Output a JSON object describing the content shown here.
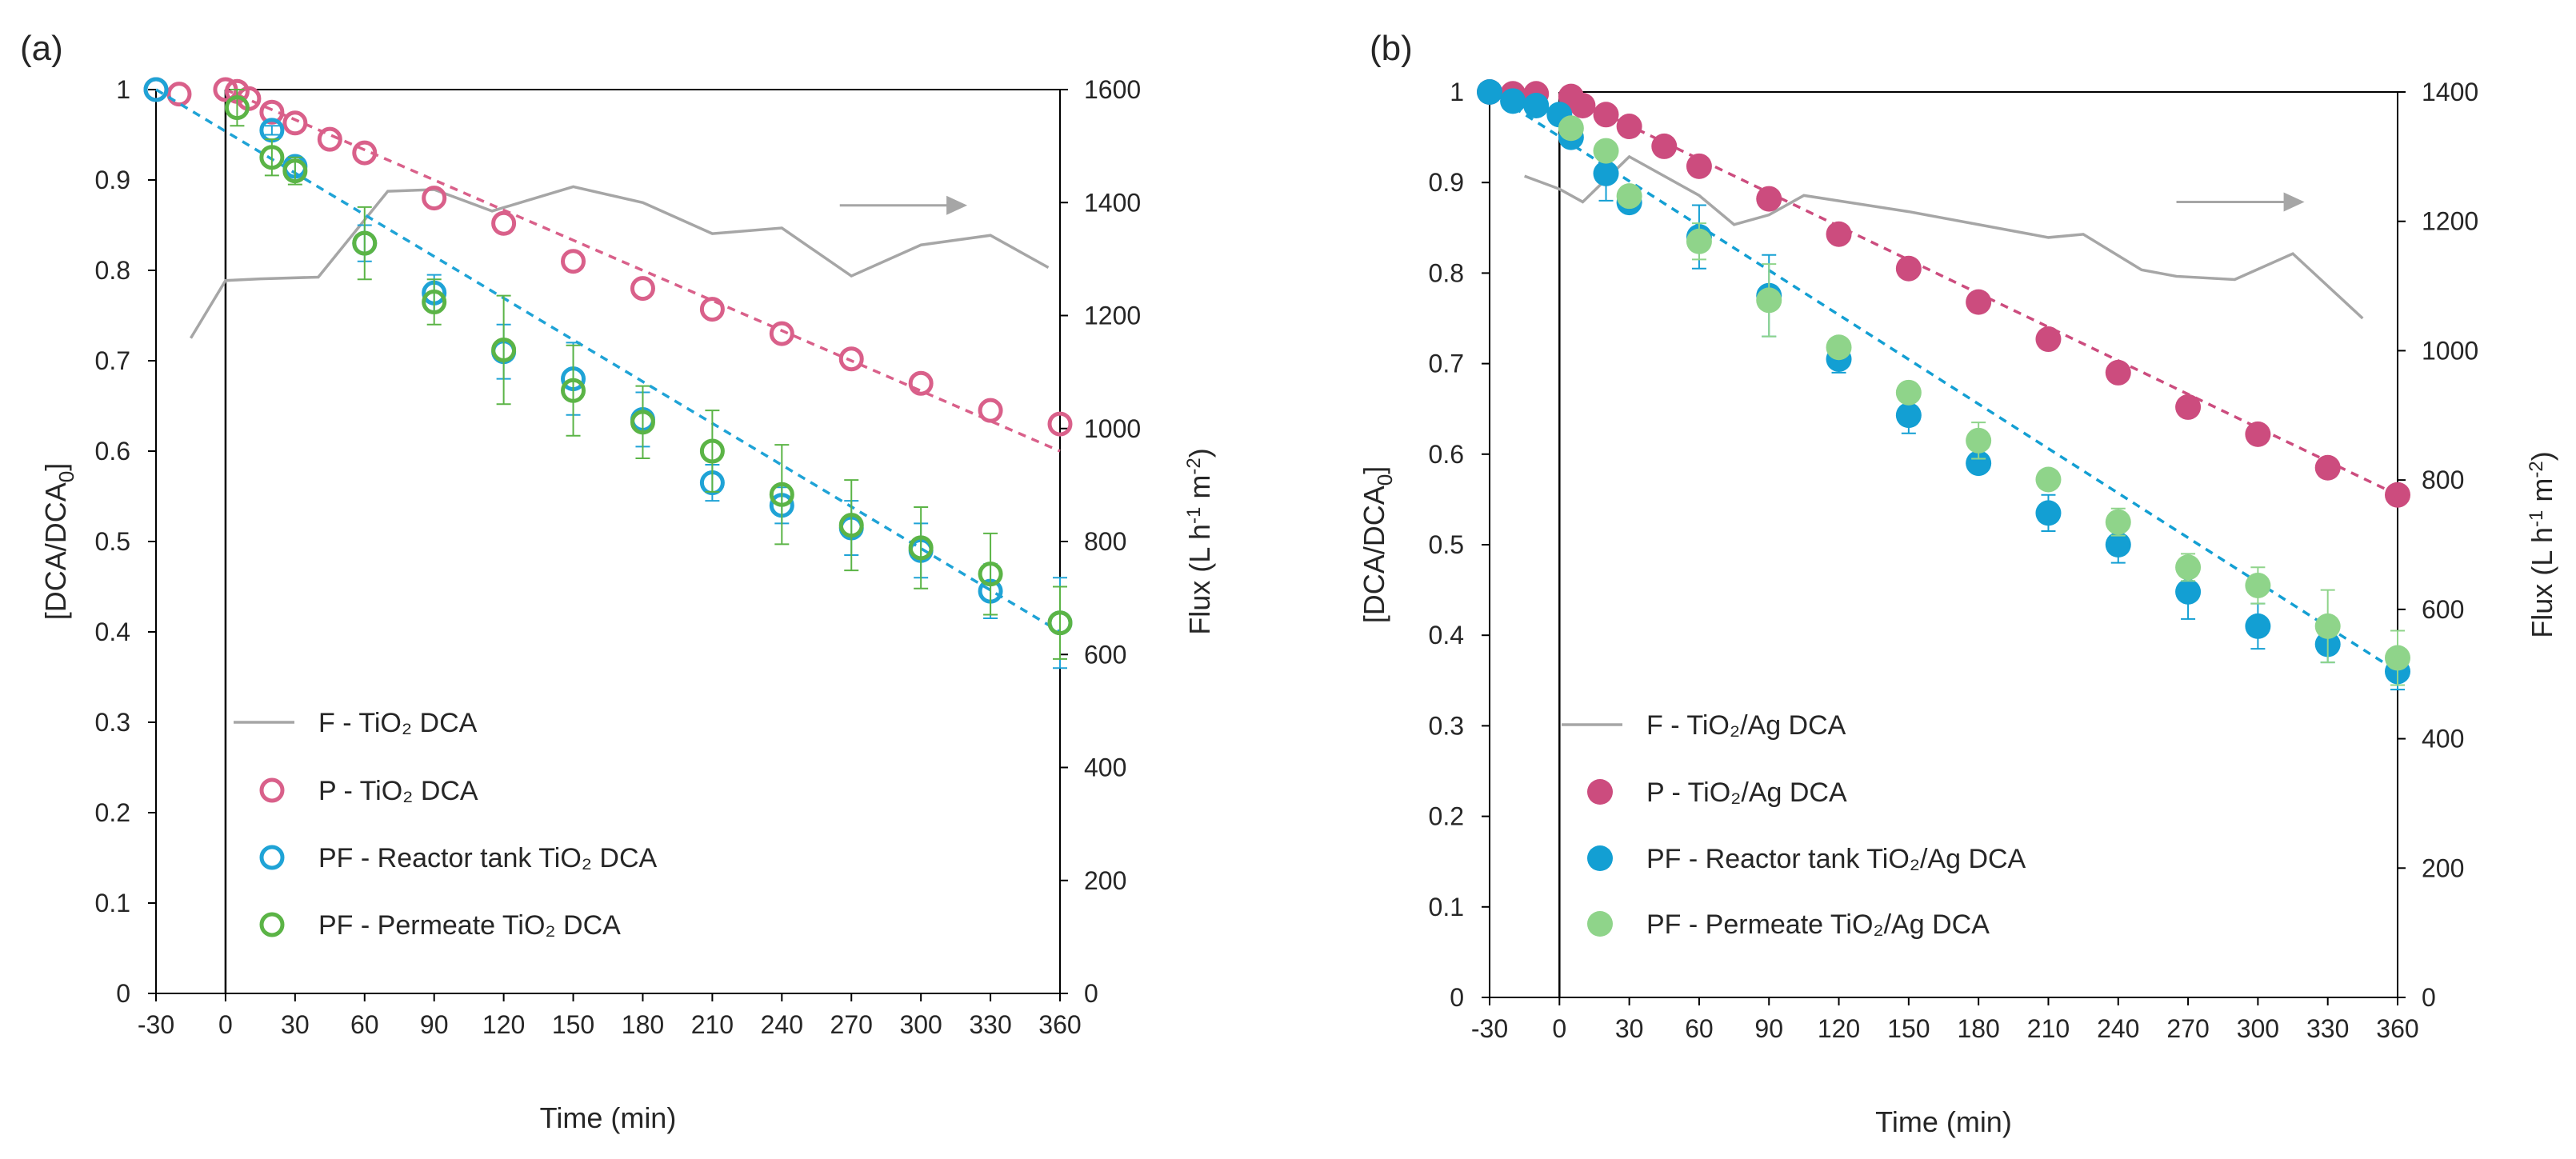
{
  "colors": {
    "flux": "#a6a6a6",
    "p_tio2": "#d9608a",
    "reactor": "#1fa3d6",
    "permeate": "#5bb446",
    "p_tioag": "#cc4c7e",
    "reactor_ag": "#139fd3",
    "permeate_ag": "#8fd48a",
    "arrow": "#a6a6a6",
    "axis": "#000000"
  },
  "chart_data": [
    {
      "type": "scatter",
      "panel_label": "(a)",
      "xlabel": "Time (min)",
      "ylabel": "[DCA/DCA",
      "ylabel_sub": "0",
      "ylabel_end": "]",
      "y2label": "Flux (L h",
      "y2label_sup1": "-1",
      "y2label_mid": " m",
      "y2label_sup2": "-2",
      "y2label_end": ")",
      "xlim": [
        -30,
        360
      ],
      "ylim": [
        0,
        1
      ],
      "y2lim": [
        0,
        1600
      ],
      "xticks": [
        -30,
        0,
        30,
        60,
        90,
        120,
        150,
        180,
        210,
        240,
        270,
        300,
        330,
        360
      ],
      "yticks": [
        0,
        0.1,
        0.2,
        0.3,
        0.4,
        0.5,
        0.6,
        0.7,
        0.8,
        0.9,
        1
      ],
      "ytick_labels": [
        "0",
        "0.1",
        "0.2",
        "0.3",
        "0.4",
        "0.5",
        "0.6",
        "0.7",
        "0.8",
        "0.9",
        "1"
      ],
      "y2ticks": [
        0,
        200,
        400,
        600,
        800,
        1000,
        1200,
        1400,
        1600
      ],
      "flux_arrow": {
        "x_from": 265,
        "x_to": 320,
        "y2": 1395
      },
      "series": [
        {
          "name": "F -  TiO₂ DCA",
          "kind": "flux",
          "color_key": "flux",
          "x": [
            -15,
            0,
            15,
            40,
            70,
            90,
            115,
            150,
            180,
            210,
            240,
            270,
            300,
            330,
            355
          ],
          "y": [
            1160,
            1262,
            1265,
            1268,
            1420,
            1423,
            1385,
            1428,
            1400,
            1345,
            1355,
            1270,
            1325,
            1342,
            1285
          ]
        },
        {
          "name": "P - TiO₂ DCA",
          "kind": "open",
          "color_key": "p_tio2",
          "x": [
            -30,
            -20,
            0,
            5,
            10,
            20,
            30,
            45,
            60,
            90,
            120,
            150,
            180,
            210,
            240,
            270,
            300,
            330,
            360
          ],
          "y": [
            1.0,
            0.995,
            1.0,
            0.998,
            0.99,
            0.975,
            0.963,
            0.945,
            0.93,
            0.88,
            0.852,
            0.81,
            0.78,
            0.757,
            0.73,
            0.702,
            0.675,
            0.645,
            0.63
          ],
          "fit": [
            [
              0,
              1.0
            ],
            [
              360,
              0.6
            ]
          ]
        },
        {
          "name": "PF - Reactor tank TiO₂ DCA",
          "kind": "open",
          "color_key": "reactor",
          "x": [
            -30,
            20,
            30,
            60,
            90,
            120,
            150,
            180,
            210,
            240,
            270,
            300,
            330,
            360
          ],
          "y": [
            1.0,
            0.955,
            0.915,
            0.83,
            0.775,
            0.71,
            0.68,
            0.635,
            0.565,
            0.54,
            0.515,
            0.49,
            0.445,
            0.41
          ],
          "err": [
            0,
            0.005,
            0.01,
            0.02,
            0.02,
            0.03,
            0.04,
            0.03,
            0.02,
            0.02,
            0.03,
            0.03,
            0.03,
            0.05
          ],
          "fit": [
            [
              -30,
              1.0
            ],
            [
              360,
              0.4
            ]
          ]
        },
        {
          "name": "PF - Permeate TiO₂ DCA",
          "kind": "open",
          "color_key": "permeate",
          "x": [
            5,
            20,
            30,
            60,
            90,
            120,
            150,
            180,
            210,
            240,
            270,
            300,
            330,
            360
          ],
          "y": [
            0.98,
            0.925,
            0.91,
            0.83,
            0.765,
            0.712,
            0.667,
            0.632,
            0.6,
            0.552,
            0.518,
            0.493,
            0.464,
            0.41
          ],
          "err": [
            0.02,
            0.02,
            0.015,
            0.04,
            0.025,
            0.06,
            0.05,
            0.04,
            0.045,
            0.055,
            0.05,
            0.045,
            0.045,
            0.04
          ]
        }
      ]
    },
    {
      "type": "scatter",
      "panel_label": "(b)",
      "xlabel": "Time (min)",
      "ylabel": "[DCA/DCA",
      "ylabel_sub": "0",
      "ylabel_end": "]",
      "y2label": "Flux (L h",
      "y2label_sup1": "-1",
      "y2label_mid": " m",
      "y2label_sup2": "-2",
      "y2label_end": ")",
      "xlim": [
        -30,
        360
      ],
      "ylim": [
        0,
        1
      ],
      "y2lim": [
        0,
        1400
      ],
      "xticks": [
        -30,
        0,
        30,
        60,
        90,
        120,
        150,
        180,
        210,
        240,
        270,
        300,
        330,
        360
      ],
      "yticks": [
        0,
        0.1,
        0.2,
        0.3,
        0.4,
        0.5,
        0.6,
        0.7,
        0.8,
        0.9,
        1
      ],
      "ytick_labels": [
        "0",
        "0.1",
        "0.2",
        "0.3",
        "0.4",
        "0.5",
        "0.6",
        "0.7",
        "0.8",
        "0.9",
        "1"
      ],
      "y2ticks": [
        0,
        200,
        400,
        600,
        800,
        1000,
        1200,
        1400
      ],
      "flux_arrow": {
        "x_from": 265,
        "x_to": 320,
        "y2": 1230
      },
      "series": [
        {
          "name": "F -  TiO₂/Ag DCA",
          "kind": "flux",
          "color_key": "flux",
          "x": [
            -15,
            0,
            10,
            30,
            60,
            75,
            90,
            105,
            150,
            180,
            210,
            225,
            250,
            265,
            290,
            315,
            345
          ],
          "y": [
            1270,
            1250,
            1230,
            1300,
            1240,
            1195,
            1210,
            1240,
            1215,
            1195,
            1175,
            1180,
            1125,
            1115,
            1110,
            1150,
            1050
          ]
        },
        {
          "name": "P - TiO₂/Ag DCA",
          "kind": "filled",
          "color_key": "p_tioag",
          "x": [
            -30,
            -20,
            -10,
            5,
            10,
            20,
            30,
            45,
            60,
            90,
            120,
            150,
            180,
            210,
            240,
            270,
            300,
            330,
            360
          ],
          "y": [
            1.0,
            0.998,
            0.998,
            0.995,
            0.985,
            0.975,
            0.962,
            0.94,
            0.918,
            0.882,
            0.843,
            0.805,
            0.768,
            0.727,
            0.69,
            0.652,
            0.622,
            0.585,
            0.555
          ],
          "fit": [
            [
              0,
              1.0
            ],
            [
              360,
              0.555
            ]
          ]
        },
        {
          "name": "PF - Reactor tank TiO₂/Ag DCA",
          "kind": "filled",
          "color_key": "reactor_ag",
          "x": [
            -30,
            -20,
            -10,
            0,
            5,
            20,
            30,
            60,
            90,
            120,
            150,
            180,
            210,
            240,
            270,
            300,
            330,
            360
          ],
          "y": [
            1.0,
            0.99,
            0.985,
            0.975,
            0.95,
            0.91,
            0.878,
            0.84,
            0.775,
            0.705,
            0.643,
            0.59,
            0.535,
            0.5,
            0.448,
            0.41,
            0.39,
            0.36
          ],
          "err": [
            0,
            0.005,
            0.005,
            0.01,
            0.01,
            0.03,
            0.01,
            0.035,
            0.045,
            0.015,
            0.02,
            0.01,
            0.02,
            0.02,
            0.03,
            0.025,
            0.02,
            0.02
          ],
          "fit": [
            [
              -30,
              1.0
            ],
            [
              360,
              0.36
            ]
          ]
        },
        {
          "name": "PF - Permeate TiO₂/Ag DCA",
          "kind": "filled",
          "color_key": "permeate_ag",
          "x": [
            5,
            20,
            30,
            60,
            90,
            120,
            150,
            180,
            210,
            240,
            270,
            300,
            330,
            360
          ],
          "y": [
            0.96,
            0.935,
            0.885,
            0.835,
            0.77,
            0.718,
            0.668,
            0.615,
            0.572,
            0.525,
            0.475,
            0.455,
            0.41,
            0.375
          ],
          "err": [
            0.01,
            0.01,
            0.01,
            0.02,
            0.04,
            0.01,
            0.01,
            0.02,
            0.01,
            0.015,
            0.015,
            0.02,
            0.04,
            0.03
          ]
        }
      ]
    }
  ]
}
